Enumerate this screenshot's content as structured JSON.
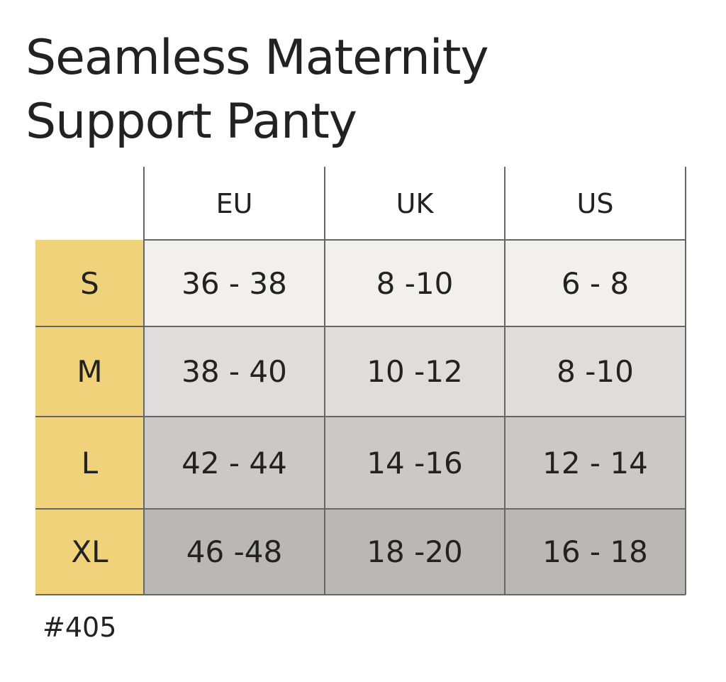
{
  "title": [
    "Seamless Maternity",
    "Support Panty"
  ],
  "table": {
    "header": [
      "EU",
      "UK",
      "US"
    ],
    "rows": [
      [
        "S",
        "36 - 38",
        "8 -10",
        "6 - 8"
      ],
      [
        "M",
        "38 - 40",
        "10 -12",
        "8 -10"
      ],
      [
        "L",
        "42 - 44",
        "14 -16",
        "12 - 14"
      ],
      [
        "XL",
        "46 -48",
        "18 -20",
        "16 - 18"
      ]
    ]
  },
  "footer": "#405"
}
